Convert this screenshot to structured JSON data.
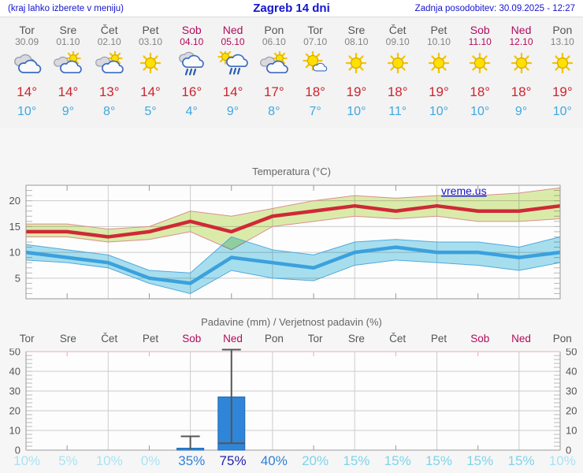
{
  "header": {
    "note": "(kraj lahko izberete v meniju)",
    "title": "Zagreb 14 dni",
    "updated": "Zadnja posodobitev: 30.09.2025 - 12:27"
  },
  "colors": {
    "link_blue": "#1414cf",
    "weekday": "#555555",
    "date_gray": "#838383",
    "weekend": "#b30a5c",
    "tmax_red": "#ce242f",
    "tmin_blue": "#3fa8e0",
    "max_line": "#cf2936",
    "max_band": "#dcedaa",
    "max_band_edge": "#df8d8d",
    "min_line": "#3ba1dd",
    "min_band": "#a8e0f0",
    "min_band_edge": "#4fa9de",
    "bar_blue": "#2f86d8",
    "bar_edge": "#1f6bb8",
    "whisker": "#555555",
    "grid": "#cccccc",
    "border": "#999999",
    "minor_tick": "#b9b9b9",
    "pink_axis": "#eeaabb",
    "axis_text": "#555555",
    "title_gray": "#666666",
    "plot_bg": "#fdfdfd",
    "prob_vlight": "#a9e3f4",
    "prob_light": "#7cd4ec",
    "prob_mid": "#2f81d5",
    "prob_dark": "#2121b2"
  },
  "days": [
    {
      "name": "Tor",
      "date": "30.09",
      "weekend": false,
      "icon": "cloudy",
      "tmax": "14°",
      "tmin": "10°",
      "prob": "10%"
    },
    {
      "name": "Sre",
      "date": "01.10",
      "weekend": false,
      "icon": "partly-cloudy",
      "tmax": "14°",
      "tmin": "9°",
      "prob": "5%"
    },
    {
      "name": "Čet",
      "date": "02.10",
      "weekend": false,
      "icon": "partly-cloudy",
      "tmax": "13°",
      "tmin": "8°",
      "prob": "10%"
    },
    {
      "name": "Pet",
      "date": "03.10",
      "weekend": false,
      "icon": "sunny",
      "tmax": "14°",
      "tmin": "5°",
      "prob": "0%"
    },
    {
      "name": "Sob",
      "date": "04.10",
      "weekend": true,
      "icon": "rain",
      "tmax": "16°",
      "tmin": "4°",
      "prob": "35%"
    },
    {
      "name": "Ned",
      "date": "05.10",
      "weekend": true,
      "icon": "sun-rain",
      "tmax": "14°",
      "tmin": "9°",
      "prob": "75%"
    },
    {
      "name": "Pon",
      "date": "06.10",
      "weekend": false,
      "icon": "partly-cloudy",
      "tmax": "17°",
      "tmin": "8°",
      "prob": "40%"
    },
    {
      "name": "Tor",
      "date": "07.10",
      "weekend": false,
      "icon": "mostly-sunny",
      "tmax": "18°",
      "tmin": "7°",
      "prob": "20%"
    },
    {
      "name": "Sre",
      "date": "08.10",
      "weekend": false,
      "icon": "sunny",
      "tmax": "19°",
      "tmin": "10°",
      "prob": "15%"
    },
    {
      "name": "Čet",
      "date": "09.10",
      "weekend": false,
      "icon": "sunny",
      "tmax": "18°",
      "tmin": "11°",
      "prob": "15%"
    },
    {
      "name": "Pet",
      "date": "10.10",
      "weekend": false,
      "icon": "sunny",
      "tmax": "19°",
      "tmin": "10°",
      "prob": "15%"
    },
    {
      "name": "Sob",
      "date": "11.10",
      "weekend": true,
      "icon": "sunny",
      "tmax": "18°",
      "tmin": "10°",
      "prob": "15%"
    },
    {
      "name": "Ned",
      "date": "12.10",
      "weekend": true,
      "icon": "sunny",
      "tmax": "18°",
      "tmin": "9°",
      "prob": "15%"
    },
    {
      "name": "Pon",
      "date": "13.10",
      "weekend": false,
      "icon": "sunny",
      "tmax": "19°",
      "tmin": "10°",
      "prob": "10%"
    }
  ],
  "chart_data": [
    {
      "type": "line",
      "title": "Temperatura (°C)",
      "watermark": "vreme.us",
      "ylim": [
        1,
        23
      ],
      "yticks": [
        5,
        10,
        15,
        20
      ],
      "grid": true,
      "x_categories": [
        "Tor 30.09",
        "Sre 01.10",
        "Čet 02.10",
        "Pet 03.10",
        "Sob 04.10",
        "Ned 05.10",
        "Pon 06.10",
        "Tor 07.10",
        "Sre 08.10",
        "Čet 09.10",
        "Pet 10.10",
        "Sob 11.10",
        "Ned 12.10",
        "Pon 13.10"
      ],
      "series": [
        {
          "name": "max temperature",
          "values": [
            14,
            14,
            13,
            14,
            16,
            14,
            17,
            18,
            19,
            18,
            19,
            18,
            18,
            19
          ],
          "band_hi": [
            15.5,
            15.5,
            14.5,
            15,
            18,
            17,
            18.5,
            20,
            21,
            20.5,
            21,
            21,
            21.5,
            22.5
          ],
          "band_lo": [
            13,
            13,
            12,
            12.5,
            14,
            10.5,
            15,
            16,
            17,
            16.5,
            17,
            16,
            16,
            16.5
          ]
        },
        {
          "name": "min temperature",
          "values": [
            10,
            9,
            8,
            5,
            4,
            9,
            8,
            7,
            10,
            11,
            10,
            10,
            9,
            10
          ],
          "band_hi": [
            11.5,
            10.5,
            9.5,
            6.5,
            6,
            13,
            10.5,
            9.5,
            12,
            12.5,
            12,
            12,
            11,
            13
          ],
          "band_lo": [
            8.5,
            8,
            7,
            4,
            2,
            6.5,
            5,
            4.5,
            7.5,
            8.5,
            8,
            7.5,
            6.5,
            8
          ]
        }
      ]
    },
    {
      "type": "bar",
      "title": "Padavine (mm) / Verjetnost padavin (%)",
      "categories": [
        "Tor",
        "Sre",
        "Čet",
        "Pet",
        "Sob",
        "Ned",
        "Pon",
        "Tor",
        "Sre",
        "Čet",
        "Pet",
        "Sob",
        "Ned",
        "Pon"
      ],
      "values": [
        0,
        0,
        0,
        0,
        1,
        27,
        0,
        0,
        0,
        0,
        0,
        0,
        0,
        0
      ],
      "whisker_lo": [
        null,
        null,
        null,
        null,
        0.5,
        3.5,
        null,
        null,
        null,
        null,
        null,
        null,
        null,
        null
      ],
      "whisker_hi": [
        null,
        null,
        null,
        null,
        7,
        51,
        null,
        null,
        null,
        null,
        null,
        null,
        null,
        null
      ],
      "probabilities": [
        10,
        5,
        10,
        0,
        35,
        75,
        40,
        20,
        15,
        15,
        15,
        15,
        15,
        10
      ],
      "ylim": [
        0,
        50
      ],
      "yticks": [
        0,
        10,
        20,
        30,
        40,
        50
      ],
      "grid": true
    }
  ]
}
